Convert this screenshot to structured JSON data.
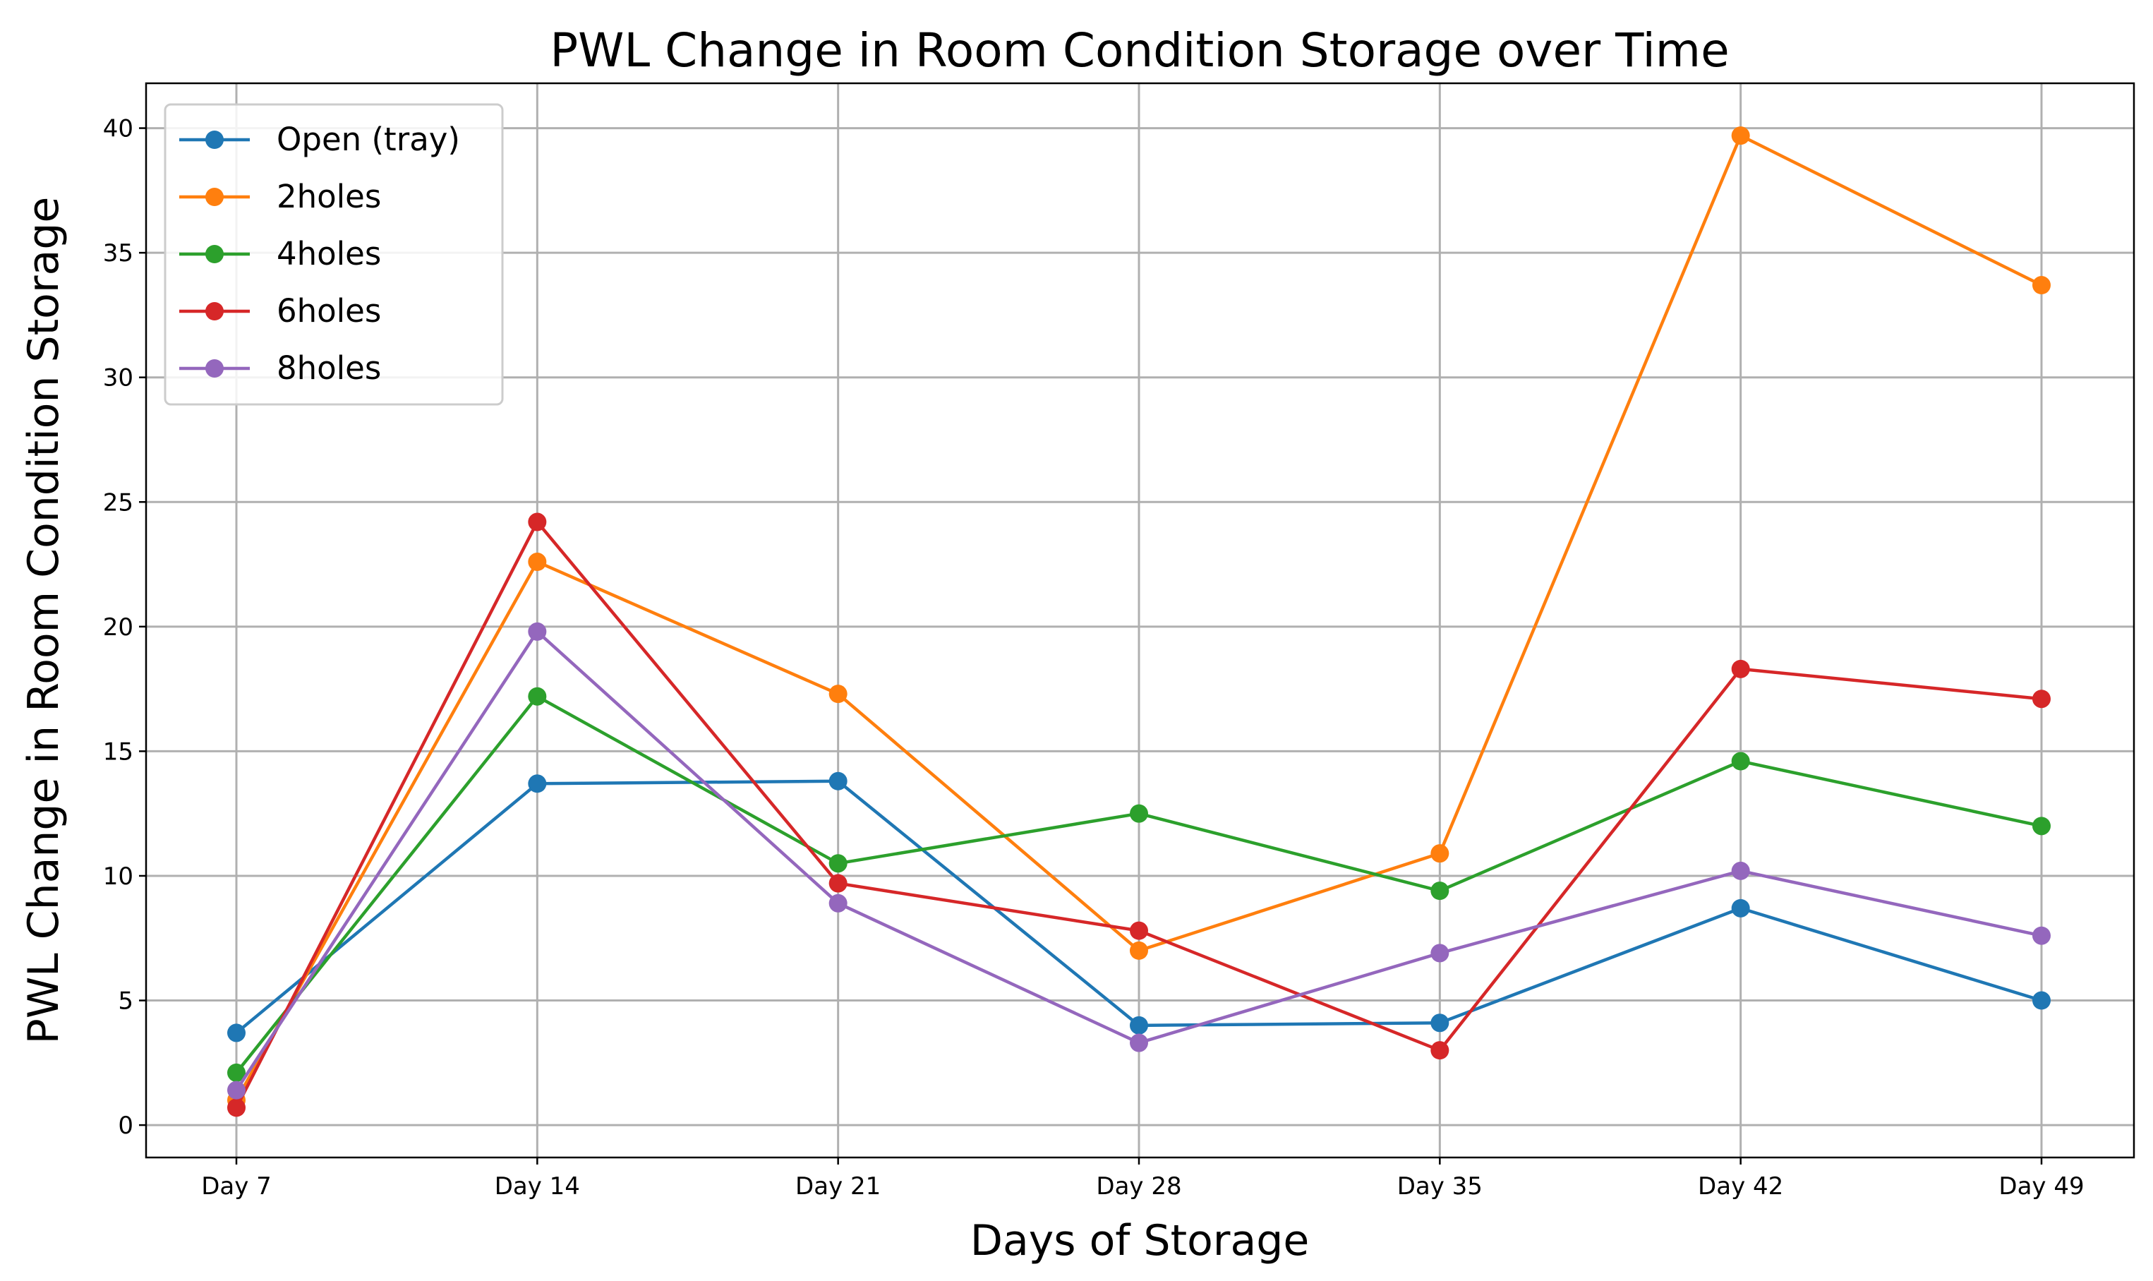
{
  "chart_data": {
    "type": "line",
    "title": "PWL Change in Room Condition Storage over Time",
    "xlabel": "Days of Storage",
    "ylabel": "PWL Change in Room Condition Storage",
    "categories": [
      "Day 7",
      "Day 14",
      "Day 21",
      "Day 28",
      "Day 35",
      "Day 42",
      "Day 49"
    ],
    "yticks": [
      0,
      5,
      10,
      15,
      20,
      25,
      30,
      35,
      40
    ],
    "ylim": [
      -1.3,
      41.8
    ],
    "grid": true,
    "legend_position": "top-left",
    "series": [
      {
        "name": "Open (tray)",
        "color": "#1f77b4",
        "values": [
          3.7,
          13.7,
          13.8,
          4.0,
          4.1,
          8.7,
          5.0
        ]
      },
      {
        "name": "2holes",
        "color": "#ff7f0e",
        "values": [
          1.0,
          22.6,
          17.3,
          7.0,
          10.9,
          39.7,
          33.7
        ]
      },
      {
        "name": "4holes",
        "color": "#2ca02c",
        "values": [
          2.1,
          17.2,
          10.5,
          12.5,
          9.4,
          14.6,
          12.0
        ]
      },
      {
        "name": "6holes",
        "color": "#d62728",
        "values": [
          0.7,
          24.2,
          9.7,
          7.8,
          3.0,
          18.3,
          17.1
        ]
      },
      {
        "name": "8holes",
        "color": "#9467bd",
        "values": [
          1.4,
          19.8,
          8.9,
          3.3,
          6.9,
          10.2,
          7.6
        ]
      }
    ]
  }
}
